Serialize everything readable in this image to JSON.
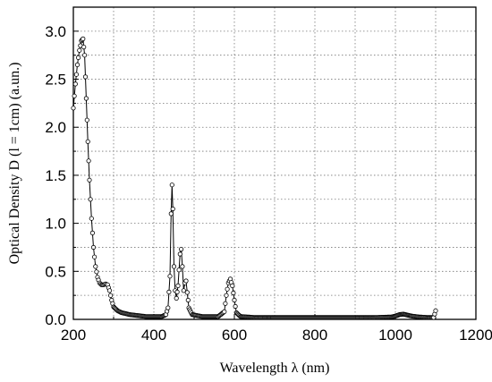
{
  "chart_data": {
    "type": "scatter",
    "xlabel": "Wavelength λ (nm)",
    "ylabel": "Optical Density D (l = 1cm) (a.un.)",
    "xlim": [
      200,
      1200
    ],
    "ylim": [
      0,
      3.25
    ],
    "xticks": [
      "200",
      "400",
      "600",
      "800",
      "1000",
      "1200"
    ],
    "yticks": [
      "0.0",
      "0.5",
      "1.0",
      "1.5",
      "2.0",
      "2.5",
      "3.0"
    ],
    "grid": true,
    "marker": "open-circle",
    "series": [
      {
        "points": [
          [
            200,
            2.2
          ],
          [
            205,
            2.45
          ],
          [
            210,
            2.65
          ],
          [
            215,
            2.8
          ],
          [
            220,
            2.9
          ],
          [
            224,
            2.92
          ],
          [
            228,
            2.75
          ],
          [
            232,
            2.3
          ],
          [
            236,
            1.85
          ],
          [
            240,
            1.45
          ],
          [
            245,
            1.05
          ],
          [
            250,
            0.75
          ],
          [
            255,
            0.55
          ],
          [
            260,
            0.44
          ],
          [
            265,
            0.38
          ],
          [
            270,
            0.36
          ],
          [
            275,
            0.36
          ],
          [
            280,
            0.37
          ],
          [
            285,
            0.36
          ],
          [
            290,
            0.3
          ],
          [
            295,
            0.2
          ],
          [
            300,
            0.13
          ],
          [
            310,
            0.09
          ],
          [
            320,
            0.07
          ],
          [
            340,
            0.05
          ],
          [
            360,
            0.04
          ],
          [
            380,
            0.03
          ],
          [
            400,
            0.03
          ],
          [
            420,
            0.03
          ],
          [
            430,
            0.05
          ],
          [
            435,
            0.12
          ],
          [
            440,
            0.45
          ],
          [
            443,
            1.1
          ],
          [
            445,
            1.4
          ],
          [
            447,
            1.15
          ],
          [
            450,
            0.55
          ],
          [
            453,
            0.3
          ],
          [
            456,
            0.22
          ],
          [
            460,
            0.35
          ],
          [
            465,
            0.68
          ],
          [
            468,
            0.73
          ],
          [
            471,
            0.55
          ],
          [
            474,
            0.3
          ],
          [
            477,
            0.38
          ],
          [
            480,
            0.4
          ],
          [
            483,
            0.28
          ],
          [
            487,
            0.12
          ],
          [
            495,
            0.05
          ],
          [
            520,
            0.03
          ],
          [
            560,
            0.03
          ],
          [
            575,
            0.08
          ],
          [
            580,
            0.25
          ],
          [
            585,
            0.38
          ],
          [
            590,
            0.42
          ],
          [
            595,
            0.35
          ],
          [
            600,
            0.2
          ],
          [
            605,
            0.07
          ],
          [
            615,
            0.03
          ],
          [
            650,
            0.02
          ],
          [
            700,
            0.02
          ],
          [
            800,
            0.02
          ],
          [
            900,
            0.02
          ],
          [
            950,
            0.02
          ],
          [
            990,
            0.025
          ],
          [
            1000,
            0.035
          ],
          [
            1010,
            0.05
          ],
          [
            1020,
            0.055
          ],
          [
            1030,
            0.045
          ],
          [
            1040,
            0.035
          ],
          [
            1060,
            0.025
          ],
          [
            1080,
            0.02
          ],
          [
            1095,
            0.02
          ],
          [
            1100,
            0.09
          ]
        ]
      }
    ]
  }
}
